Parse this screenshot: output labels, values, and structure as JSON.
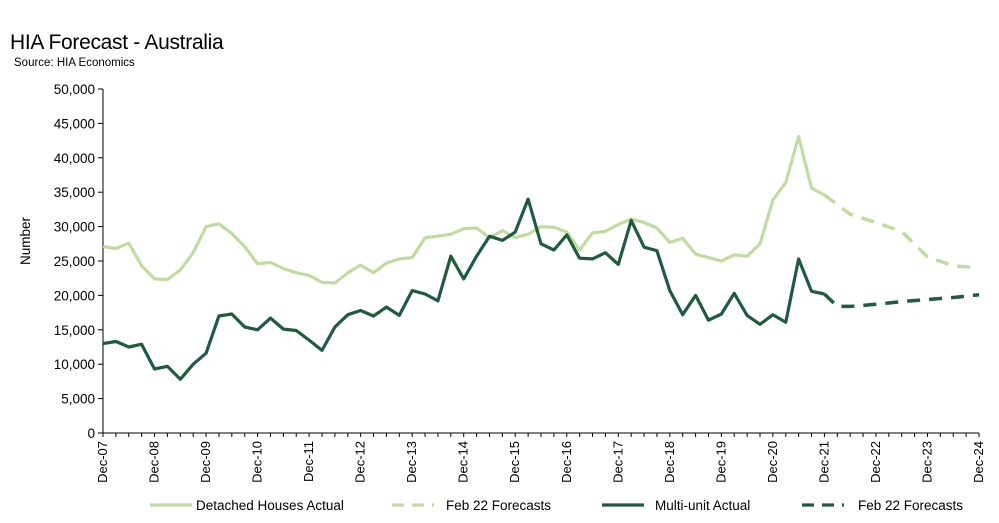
{
  "chart_data": {
    "type": "line",
    "title": "HIA Forecast - Australia",
    "subtitle": "Source: HIA Economics",
    "ylabel": "Number",
    "xlabel": "",
    "ylim": [
      0,
      50000
    ],
    "yticks": [
      0,
      5000,
      10000,
      15000,
      20000,
      25000,
      30000,
      35000,
      40000,
      45000,
      50000
    ],
    "ytick_labels": [
      "0",
      "5,000",
      "10,000",
      "15,000",
      "20,000",
      "25,000",
      "30,000",
      "35,000",
      "40,000",
      "45,000",
      "50,000"
    ],
    "x_quarter_range": [
      0,
      68
    ],
    "xtick_labels": [
      "Dec-07",
      "Dec-08",
      "Dec-09",
      "Dec-10",
      "Dec-11",
      "Dec-12",
      "Dec-13",
      "Dec-14",
      "Dec-15",
      "Dec-16",
      "Dec-17",
      "Dec-18",
      "Dec-19",
      "Dec-20",
      "Dec-21",
      "Dec-22",
      "Dec-23",
      "Dec-24"
    ],
    "xtick_quarters": [
      0,
      4,
      8,
      12,
      16,
      20,
      24,
      28,
      32,
      36,
      40,
      44,
      48,
      52,
      56,
      60,
      64,
      68
    ],
    "grid": false,
    "legend_position": "bottom",
    "colors": {
      "detached": "#c2dba0",
      "multi": "#1f5c3e"
    },
    "series": [
      {
        "name": "Detached Houses Actual",
        "style": "solid",
        "color": "#c2dba0",
        "quarters": [
          0,
          1,
          2,
          3,
          4,
          5,
          6,
          7,
          8,
          9,
          10,
          11,
          12,
          13,
          14,
          15,
          16,
          17,
          18,
          19,
          20,
          21,
          22,
          23,
          24,
          25,
          26,
          27,
          28,
          29,
          30,
          31,
          32,
          33,
          34,
          35,
          36,
          37,
          38,
          39,
          40,
          41,
          42,
          43,
          44,
          45,
          46,
          47,
          48,
          49,
          50,
          51,
          52,
          53,
          54,
          55,
          56
        ],
        "values": [
          27100,
          26800,
          27600,
          24300,
          22400,
          22300,
          23700,
          26200,
          30000,
          30400,
          29000,
          27100,
          24600,
          24800,
          23900,
          23300,
          22900,
          21900,
          21800,
          23300,
          24400,
          23300,
          24700,
          25300,
          25500,
          28400,
          28600,
          28900,
          29700,
          29800,
          28400,
          29400,
          28400,
          28900,
          30000,
          29900,
          29200,
          26600,
          29100,
          29300,
          30300,
          31100,
          30600,
          29800,
          27700,
          28300,
          26000,
          25500,
          25000,
          25900,
          25700,
          27500,
          33900,
          36400,
          43100,
          35600,
          34600
        ]
      },
      {
        "name": "Feb 22 Forecasts",
        "style": "dashed",
        "color": "#c2dba0",
        "quarters": [
          56,
          58,
          60,
          62,
          64,
          66,
          68
        ],
        "values": [
          34600,
          31800,
          30600,
          29300,
          25600,
          24300,
          24000
        ]
      },
      {
        "name": "Multi-unit Actual",
        "style": "solid",
        "color": "#1f5c3e",
        "quarters": [
          0,
          1,
          2,
          3,
          4,
          5,
          6,
          7,
          8,
          9,
          10,
          11,
          12,
          13,
          14,
          15,
          16,
          17,
          18,
          19,
          20,
          21,
          22,
          23,
          24,
          25,
          26,
          27,
          28,
          29,
          30,
          31,
          32,
          33,
          34,
          35,
          36,
          37,
          38,
          39,
          40,
          41,
          42,
          43,
          44,
          45,
          46,
          47,
          48,
          49,
          50,
          51,
          52,
          53,
          54,
          55,
          56
        ],
        "values": [
          13000,
          13300,
          12500,
          12900,
          9300,
          9700,
          7800,
          10000,
          11600,
          17000,
          17300,
          15400,
          15000,
          16700,
          15100,
          14900,
          13500,
          12000,
          15400,
          17200,
          17800,
          17000,
          18300,
          17100,
          20700,
          20200,
          19200,
          25700,
          22400,
          25700,
          28600,
          28000,
          29200,
          34000,
          27500,
          26600,
          28800,
          25400,
          25300,
          26200,
          24500,
          30900,
          27000,
          26500,
          20700,
          17200,
          20000,
          16400,
          17300,
          20300,
          17100,
          15800,
          17200,
          16100,
          25300,
          20600,
          20200
        ]
      },
      {
        "name": "Feb 22 Forecasts",
        "style": "dashed",
        "color": "#1f5c3e",
        "quarters": [
          56,
          57,
          58,
          60,
          62,
          64,
          66,
          68
        ],
        "values": [
          20200,
          18400,
          18400,
          18700,
          19100,
          19400,
          19700,
          20100
        ]
      }
    ]
  }
}
